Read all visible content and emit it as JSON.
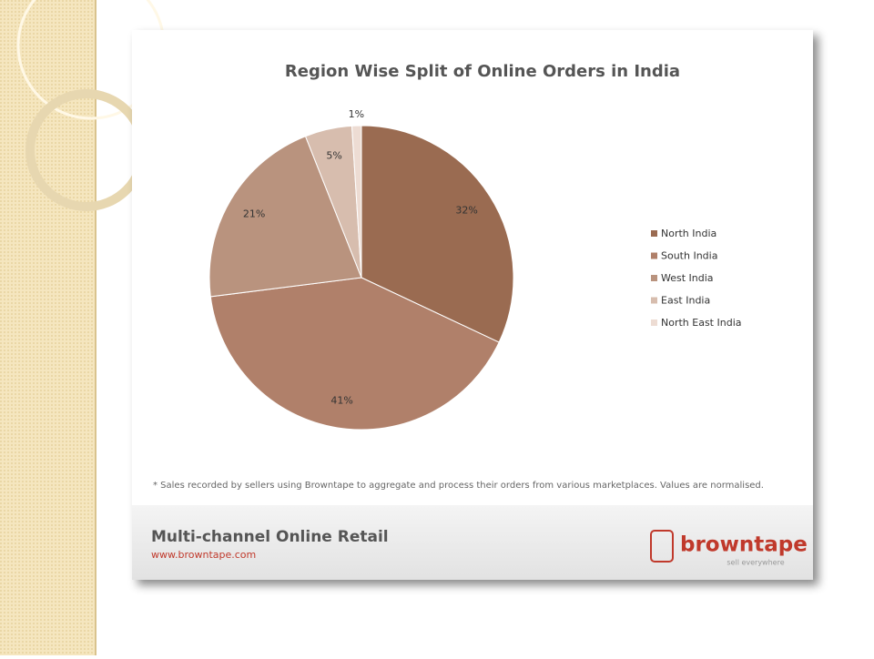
{
  "chart_data": {
    "type": "pie",
    "title": "Region Wise Split of Online Orders in India",
    "categories": [
      "North India",
      "South India",
      "West India",
      "East India",
      "North East India"
    ],
    "values": [
      32,
      41,
      21,
      5,
      1
    ],
    "value_labels": [
      "32%",
      "41%",
      "21%",
      "5%",
      "1%"
    ],
    "colors": [
      "#9a6b51",
      "#b0806a",
      "#b9937e",
      "#d7bdae",
      "#eddcd3"
    ],
    "legend": "right"
  },
  "footnote": "* Sales recorded by sellers using Browntape to aggregate and process their orders from various marketplaces. Values are normalised.",
  "footer": {
    "title": "Multi-channel Online Retail",
    "url": "www.browntape.com"
  },
  "logo": {
    "name": "browntape",
    "tagline": "sell everywhere"
  }
}
